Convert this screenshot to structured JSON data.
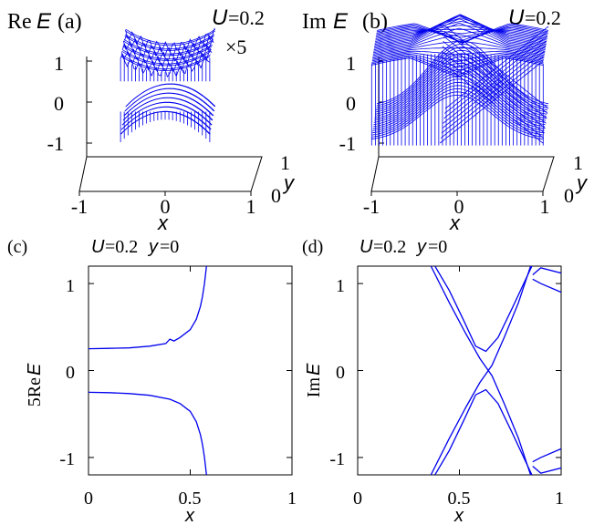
{
  "colors": {
    "line": "#0000ee",
    "axis": "#000000",
    "background": "#ffffff"
  },
  "panels": {
    "a": {
      "letter": "(a)",
      "quantity_prefix": "Re",
      "quantity_symbol": "E",
      "param_symbol": "U",
      "param_value": "=0.2",
      "scale_note": "×5",
      "z_ticks": [
        "1",
        "0",
        "-1"
      ],
      "x_ticks": [
        "-1",
        "0",
        "1"
      ],
      "y_ticks": [
        "0",
        "1"
      ],
      "xlabel": "x",
      "ylabel": "y"
    },
    "b": {
      "letter": "(b)",
      "quantity_prefix": "Im",
      "quantity_symbol": "E",
      "param_symbol": "U",
      "param_value": "=0.2",
      "z_ticks": [
        "1",
        "0",
        "-1"
      ],
      "x_ticks": [
        "-1",
        "0",
        "1"
      ],
      "y_ticks": [
        "0",
        "1"
      ],
      "xlabel": "x",
      "ylabel": "y"
    },
    "c": {
      "letter": "(c)",
      "param_symbol": "U",
      "param_value": "=0.2",
      "cut_symbol": "y",
      "cut_value": "=0",
      "ylabel_prefix": "5Re",
      "ylabel_symbol": "E",
      "xlabel": "x",
      "x_ticks": [
        "0",
        "0.5",
        "1"
      ],
      "y_ticks": [
        "1",
        "0",
        "-1"
      ]
    },
    "d": {
      "letter": "(d)",
      "param_symbol": "U",
      "param_value": "=0.2",
      "cut_symbol": "y",
      "cut_value": "=0",
      "ylabel_prefix": "Im",
      "ylabel_symbol": "E",
      "xlabel": "x",
      "x_ticks": [
        "0",
        "0.5",
        "1"
      ],
      "y_ticks": [
        "1",
        "0",
        "-1"
      ]
    }
  },
  "chart_data": [
    {
      "panel": "a",
      "type": "surface",
      "x_range": [
        -1,
        1
      ],
      "y_range": [
        0,
        1
      ],
      "z_range": [
        -1.2,
        1.2
      ],
      "bands": [
        {
          "name": "upper",
          "x_range": [
            -0.55,
            0.55
          ],
          "z_range": [
            0.55,
            1.05
          ]
        },
        {
          "name": "lower",
          "x_range": [
            -0.55,
            0.55
          ],
          "z_range": [
            -0.75,
            -0.1
          ]
        }
      ]
    },
    {
      "panel": "b",
      "type": "surface",
      "x_range": [
        -1,
        1
      ],
      "y_range": [
        0,
        1
      ],
      "z_range": [
        -1.2,
        1.2
      ]
    },
    {
      "panel": "c",
      "type": "line",
      "xlabel": "x",
      "ylabel": "5ReE",
      "xlim": [
        0,
        1
      ],
      "ylim": [
        -1.2,
        1.2
      ],
      "series": [
        {
          "x": [
            0,
            0.1,
            0.2,
            0.3,
            0.38,
            0.4,
            0.42,
            0.45,
            0.5,
            0.53,
            0.55,
            0.56,
            0.57,
            0.58
          ],
          "y": [
            0.25,
            0.255,
            0.26,
            0.28,
            0.31,
            0.36,
            0.34,
            0.38,
            0.47,
            0.59,
            0.74,
            0.85,
            1.0,
            1.2
          ]
        },
        {
          "x": [
            0,
            0.1,
            0.2,
            0.3,
            0.4,
            0.45,
            0.5,
            0.53,
            0.55,
            0.56,
            0.57,
            0.58
          ],
          "y": [
            -0.25,
            -0.255,
            -0.265,
            -0.285,
            -0.33,
            -0.38,
            -0.47,
            -0.59,
            -0.74,
            -0.85,
            -1.0,
            -1.2
          ]
        }
      ]
    },
    {
      "panel": "d",
      "type": "line",
      "xlabel": "x",
      "ylabel": "ImE",
      "xlim": [
        0,
        1
      ],
      "ylim": [
        -1.2,
        1.2
      ],
      "series": [
        {
          "x": [
            0.36,
            0.45,
            0.53,
            0.6,
            0.66,
            0.72,
            0.79,
            0.85
          ],
          "y": [
            1.2,
            0.78,
            0.43,
            0.14,
            -0.06,
            -0.38,
            -0.78,
            -1.2
          ]
        },
        {
          "x": [
            0.36,
            0.45,
            0.53,
            0.6,
            0.66,
            0.72,
            0.79,
            0.85
          ],
          "y": [
            -1.2,
            -0.78,
            -0.43,
            -0.14,
            0.06,
            0.38,
            0.78,
            1.2
          ]
        },
        {
          "x": [
            0.38,
            0.45,
            0.52,
            0.58,
            0.63,
            0.69,
            0.76,
            0.86
          ],
          "y": [
            1.2,
            0.92,
            0.58,
            0.28,
            0.22,
            0.38,
            0.72,
            1.22
          ]
        },
        {
          "x": [
            0.38,
            0.45,
            0.52,
            0.58,
            0.63,
            0.69,
            0.76,
            0.86
          ],
          "y": [
            -1.2,
            -0.92,
            -0.58,
            -0.28,
            -0.22,
            -0.38,
            -0.72,
            -1.22
          ]
        },
        {
          "x": [
            0.86,
            0.9,
            1.0
          ],
          "y": [
            1.1,
            1.18,
            1.12
          ]
        },
        {
          "x": [
            0.86,
            0.9,
            1.0
          ],
          "y": [
            1.05,
            1.0,
            0.9
          ]
        },
        {
          "x": [
            0.86,
            0.9,
            1.0
          ],
          "y": [
            -1.1,
            -1.18,
            -1.12
          ]
        },
        {
          "x": [
            0.86,
            0.9,
            1.0
          ],
          "y": [
            -1.05,
            -1.0,
            -0.9
          ]
        }
      ]
    }
  ]
}
